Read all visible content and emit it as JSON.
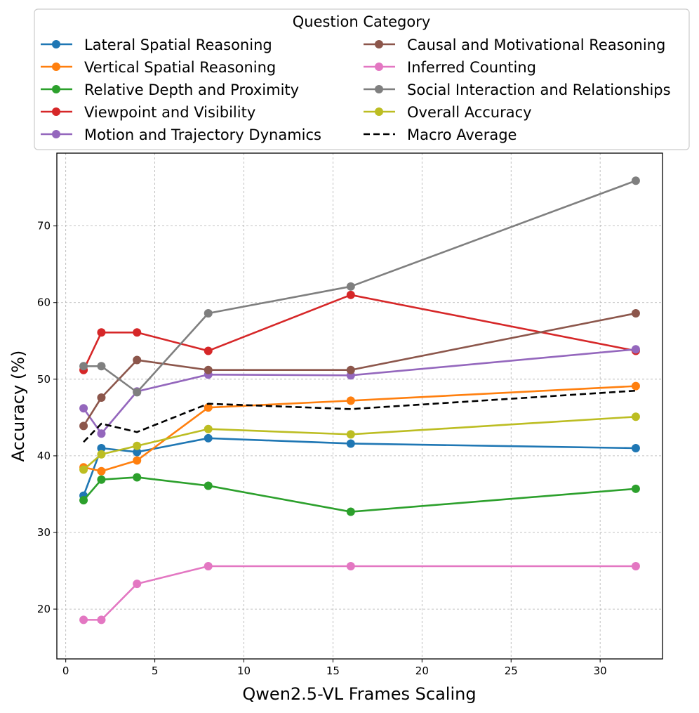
{
  "chart_data": {
    "type": "line",
    "title": "",
    "xlabel": "Qwen2.5-VL Frames Scaling",
    "ylabel": "Accuracy (%)",
    "x": [
      1,
      2,
      4,
      8,
      16,
      32
    ],
    "xlim": [
      -0.5,
      33.5
    ],
    "ylim": [
      13.5,
      79.5
    ],
    "xticks": [
      0,
      5,
      10,
      15,
      20,
      25,
      30
    ],
    "yticks": [
      20,
      30,
      40,
      50,
      60,
      70
    ],
    "grid": true,
    "legend": {
      "title": "Question Category",
      "position": "top-center, above plot",
      "columns": 2
    },
    "series": [
      {
        "name": "Lateral Spatial Reasoning",
        "color": "#1f77b4",
        "style": "solid-marker",
        "values": [
          34.8,
          41.0,
          40.5,
          42.3,
          41.6,
          41.0
        ]
      },
      {
        "name": "Vertical Spatial Reasoning",
        "color": "#ff7f0e",
        "style": "solid-marker",
        "values": [
          38.5,
          38.0,
          39.4,
          46.3,
          47.2,
          49.1
        ]
      },
      {
        "name": "Relative Depth and Proximity",
        "color": "#2ca02c",
        "style": "solid-marker",
        "values": [
          34.2,
          36.9,
          37.2,
          36.1,
          32.7,
          35.7
        ]
      },
      {
        "name": "Viewpoint and Visibility",
        "color": "#d62728",
        "style": "solid-marker",
        "values": [
          51.2,
          56.1,
          56.1,
          53.7,
          61.0,
          53.7
        ]
      },
      {
        "name": "Motion and Trajectory Dynamics",
        "color": "#9467bd",
        "style": "solid-marker",
        "values": [
          46.2,
          42.9,
          48.4,
          50.6,
          50.5,
          53.9
        ]
      },
      {
        "name": "Causal and Motivational Reasoning",
        "color": "#8c564b",
        "style": "solid-marker",
        "values": [
          43.9,
          47.6,
          52.5,
          51.2,
          51.2,
          58.6
        ]
      },
      {
        "name": "Inferred Counting",
        "color": "#e377c2",
        "style": "solid-marker",
        "values": [
          18.6,
          18.6,
          23.3,
          25.6,
          25.6,
          25.6
        ]
      },
      {
        "name": "Social Interaction and Relationships",
        "color": "#7f7f7f",
        "style": "solid-marker",
        "values": [
          51.7,
          51.7,
          48.3,
          58.6,
          62.1,
          75.9
        ]
      },
      {
        "name": "Overall Accuracy",
        "color": "#bcbd22",
        "style": "solid-marker",
        "values": [
          38.2,
          40.2,
          41.3,
          43.5,
          42.8,
          45.1
        ]
      },
      {
        "name": "Macro Average",
        "color": "#000000",
        "style": "dashed",
        "values": [
          41.8,
          44.2,
          43.1,
          46.8,
          46.1,
          48.5
        ]
      }
    ]
  }
}
